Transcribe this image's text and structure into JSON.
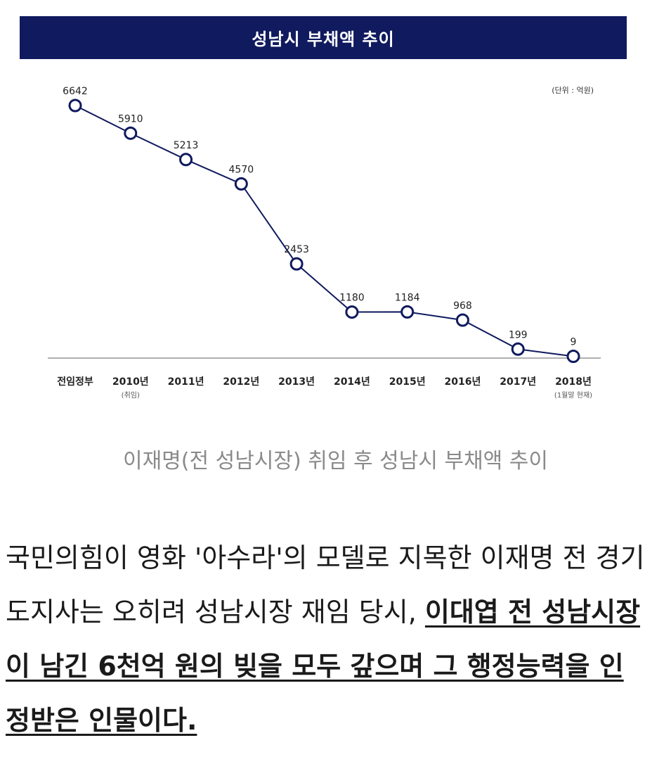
{
  "chart_data": {
    "type": "line",
    "title": "성남시 부채액 추이",
    "unit_label": "(단위 : 억원)",
    "categories": [
      "전임정부",
      "2010년",
      "2011년",
      "2012년",
      "2013년",
      "2014년",
      "2015년",
      "2016년",
      "2017년",
      "2018년"
    ],
    "category_notes": [
      "",
      "(취임)",
      "",
      "",
      "",
      "",
      "",
      "",
      "",
      "(1월말 현재)"
    ],
    "values": [
      6642,
      5910,
      5213,
      4570,
      2453,
      1180,
      1184,
      968,
      199,
      9
    ],
    "ylim": [
      0,
      6642
    ],
    "grid": false,
    "colors": {
      "line": "#101a5e",
      "banner": "#101a5e",
      "axis": "#b0b0b0"
    }
  },
  "caption": "이재명(전 성남시장) 취임 후 성남시 부채액 추이",
  "body": {
    "plain": "국민의힘이 영화 '아수라'의 모델로 지목한 이재명 전 경기도지사는 오히려 성남시장 재임 당시, ",
    "emphasis": "이대엽 전 성남시장이 남긴 6천억 원의 빚을 모두 갚으며 그 행정능력을 인정받은 인물이다."
  }
}
